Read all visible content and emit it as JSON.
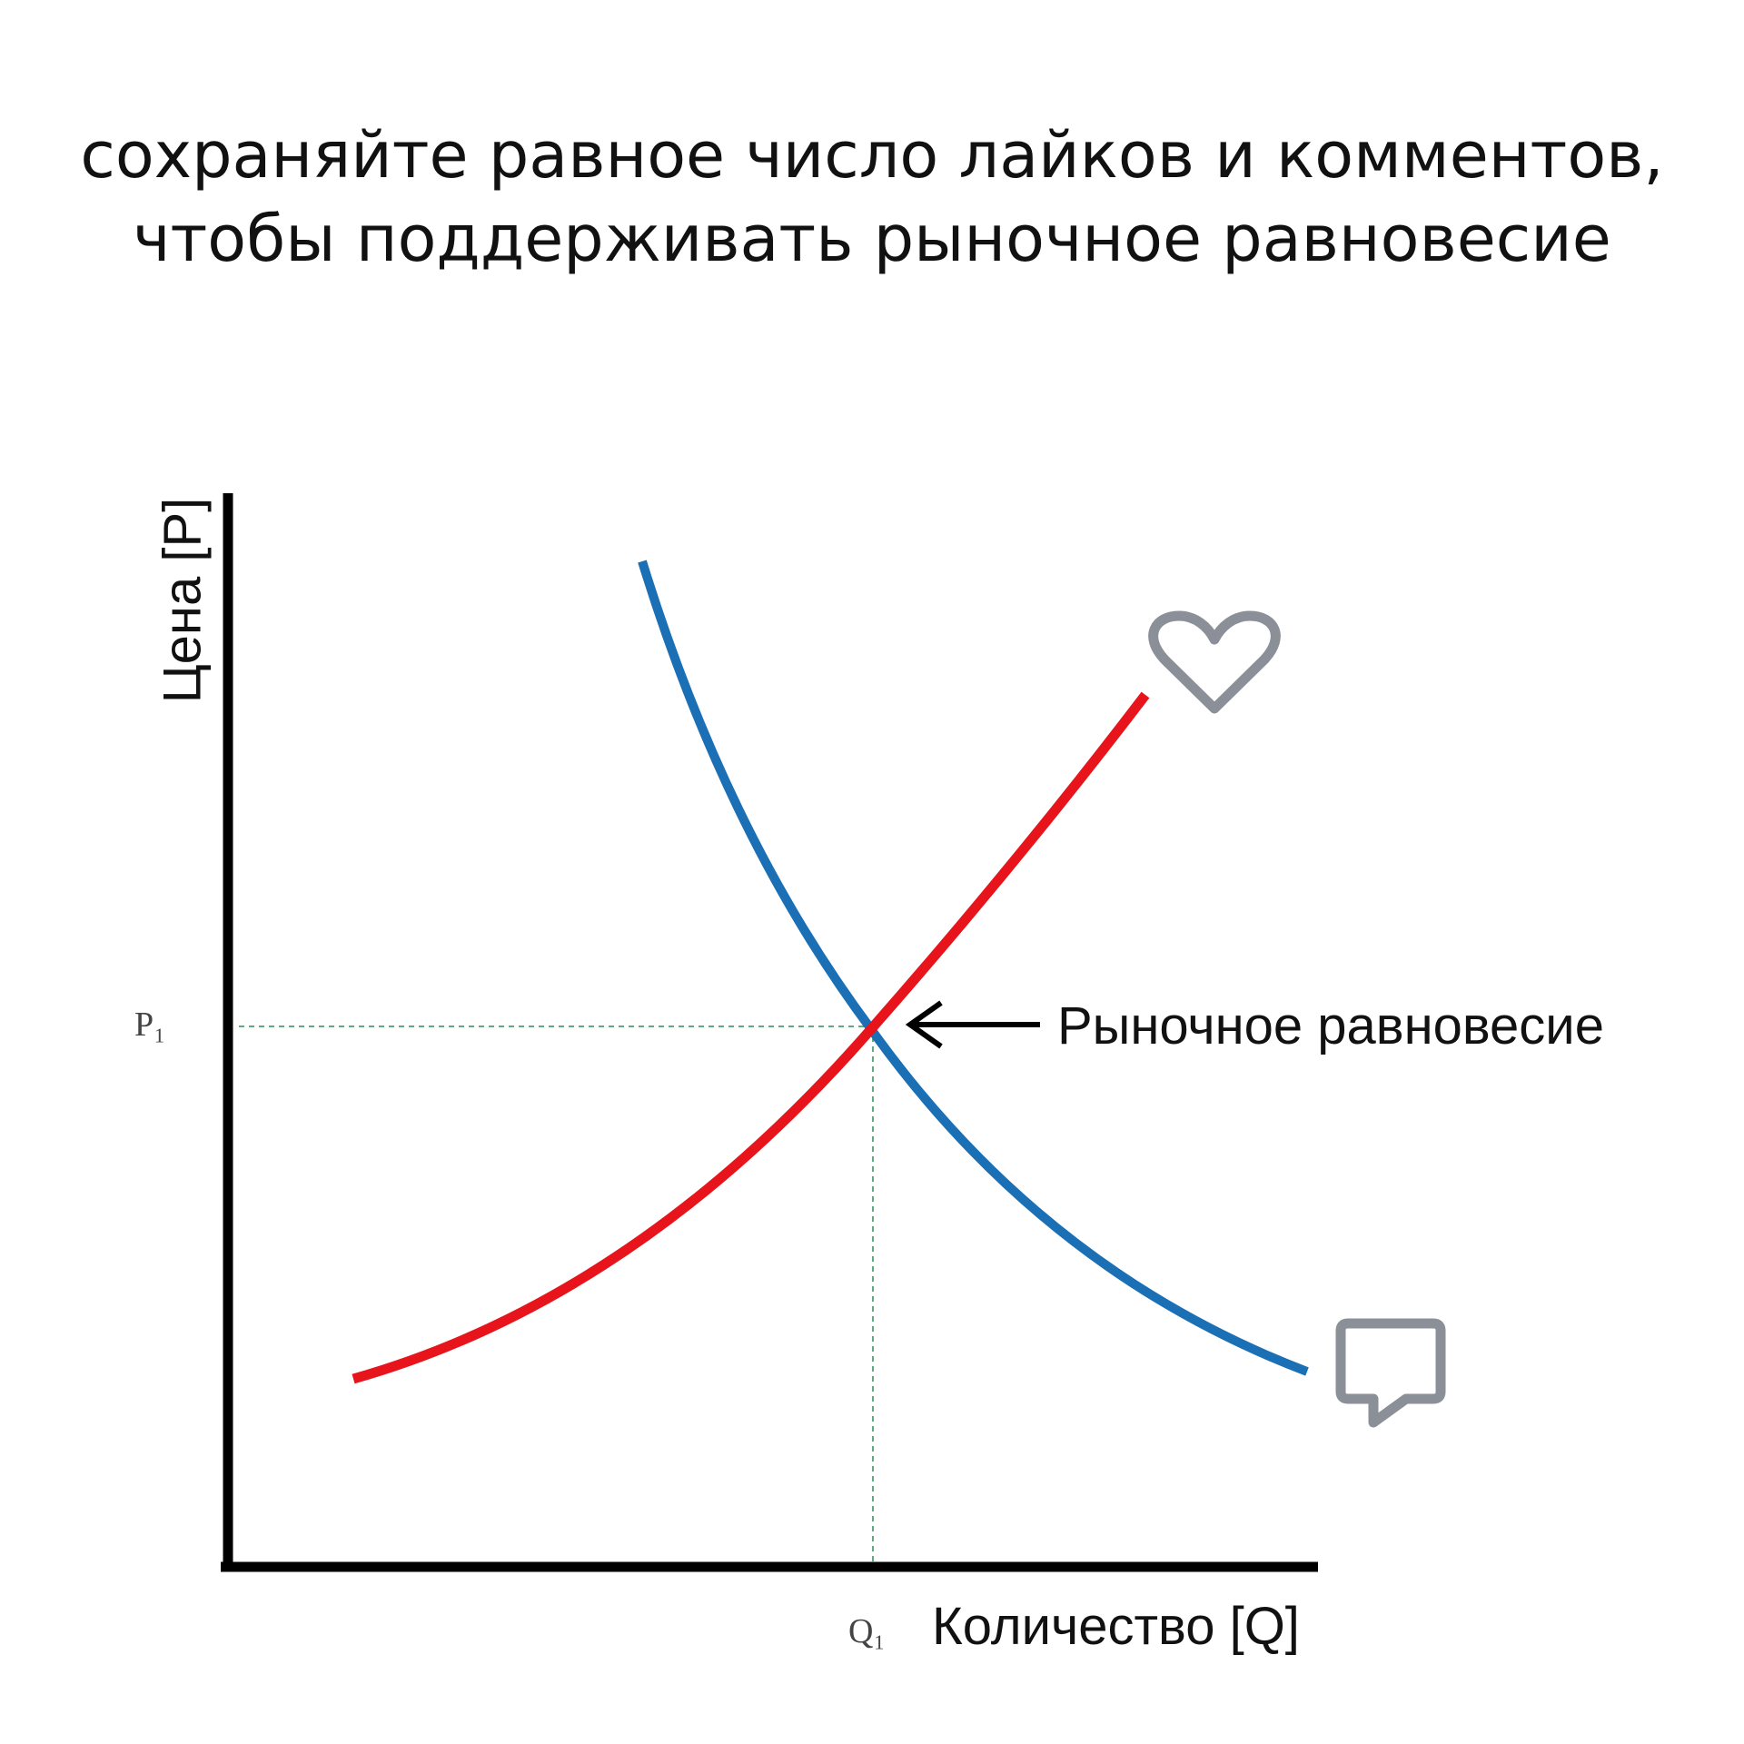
{
  "header": {
    "title_lines": [
      "сохраняйте равное число лайков и комментов,",
      "чтобы поддерживать рыночное равновесие"
    ]
  },
  "diagram": {
    "y_axis_label": "Цена [P]",
    "x_axis_label": "Количество [Q]",
    "price_label": "P₁",
    "quantity_label": "Q₁",
    "annotation": "Рыночное равновесие"
  }
}
